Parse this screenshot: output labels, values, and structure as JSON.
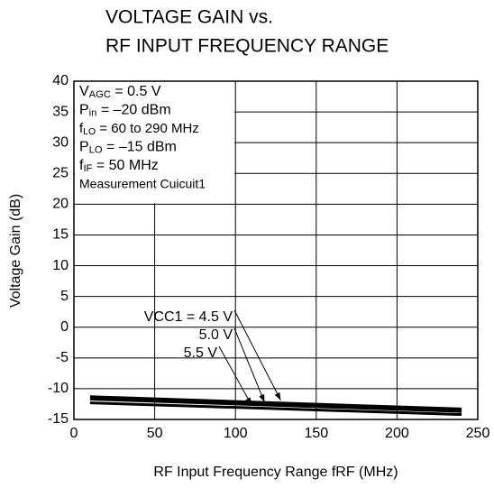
{
  "chart_data": {
    "type": "line",
    "title": [
      "VOLTAGE GAIN vs.",
      "RF INPUT FREQUENCY RANGE"
    ],
    "x_label": "RF Input Frequency Range  fRF (MHz)",
    "y_label": "Voltage Gain  (dB)",
    "x": [
      10,
      240
    ],
    "series": [
      {
        "name": "VCC1 = 4.5 V",
        "color": "#000000",
        "values": [
          -11.3,
          -13.3
        ]
      },
      {
        "name": "5.0 V",
        "color": "#000000",
        "values": [
          -11.7,
          -13.7
        ]
      },
      {
        "name": "5.5 V",
        "color": "#000000",
        "values": [
          -12.3,
          -14.2
        ]
      }
    ],
    "xlim": [
      0,
      250
    ],
    "xticks": [
      0,
      50,
      100,
      150,
      200,
      250
    ],
    "ylim": [
      -15,
      40
    ],
    "yticks": [
      -15,
      -10,
      -5,
      0,
      5,
      10,
      15,
      20,
      25,
      30,
      35,
      40
    ],
    "grid": true,
    "conditions": [
      [
        {
          "text": "V"
        },
        {
          "text": "AGC",
          "sub": true
        },
        {
          "text": " = 0.5 V"
        }
      ],
      [
        {
          "text": "P"
        },
        {
          "text": "in",
          "sub": true
        },
        {
          "text": " = –20 dBm"
        }
      ],
      [
        {
          "text": "f"
        },
        {
          "text": "LO",
          "sub": true
        },
        {
          "text": " = 60 to 290 MHz"
        }
      ],
      [
        {
          "text": "P"
        },
        {
          "text": "LO",
          "sub": true
        },
        {
          "text": " = –15 dBm"
        }
      ],
      [
        {
          "text": "f"
        },
        {
          "text": "IF",
          "sub": true
        },
        {
          "text": " = 50 MHz"
        }
      ],
      [
        {
          "text": "Measurement Cuicuit1"
        }
      ]
    ]
  }
}
